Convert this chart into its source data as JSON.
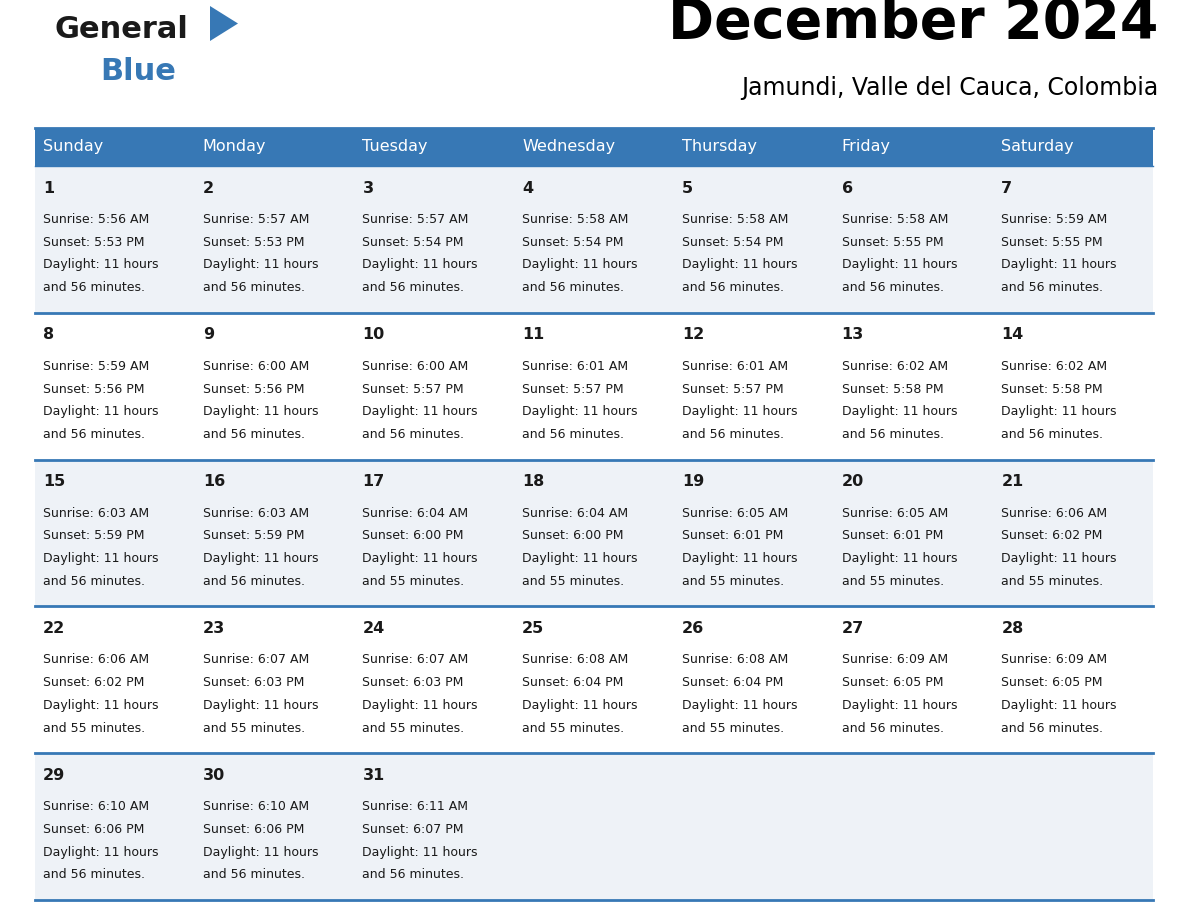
{
  "title": "December 2024",
  "subtitle": "Jamundi, Valle del Cauca, Colombia",
  "header_color": "#3778b5",
  "header_text_color": "#ffffff",
  "cell_bg_odd": "#eef2f7",
  "cell_bg_even": "#ffffff",
  "border_color": "#3778b5",
  "text_color": "#1a1a1a",
  "day_names": [
    "Sunday",
    "Monday",
    "Tuesday",
    "Wednesday",
    "Thursday",
    "Friday",
    "Saturday"
  ],
  "days": [
    {
      "day": 1,
      "col": 0,
      "row": 0,
      "sunrise": "5:56 AM",
      "sunset": "5:53 PM",
      "daylight": "11 hours and 56 minutes."
    },
    {
      "day": 2,
      "col": 1,
      "row": 0,
      "sunrise": "5:57 AM",
      "sunset": "5:53 PM",
      "daylight": "11 hours and 56 minutes."
    },
    {
      "day": 3,
      "col": 2,
      "row": 0,
      "sunrise": "5:57 AM",
      "sunset": "5:54 PM",
      "daylight": "11 hours and 56 minutes."
    },
    {
      "day": 4,
      "col": 3,
      "row": 0,
      "sunrise": "5:58 AM",
      "sunset": "5:54 PM",
      "daylight": "11 hours and 56 minutes."
    },
    {
      "day": 5,
      "col": 4,
      "row": 0,
      "sunrise": "5:58 AM",
      "sunset": "5:54 PM",
      "daylight": "11 hours and 56 minutes."
    },
    {
      "day": 6,
      "col": 5,
      "row": 0,
      "sunrise": "5:58 AM",
      "sunset": "5:55 PM",
      "daylight": "11 hours and 56 minutes."
    },
    {
      "day": 7,
      "col": 6,
      "row": 0,
      "sunrise": "5:59 AM",
      "sunset": "5:55 PM",
      "daylight": "11 hours and 56 minutes."
    },
    {
      "day": 8,
      "col": 0,
      "row": 1,
      "sunrise": "5:59 AM",
      "sunset": "5:56 PM",
      "daylight": "11 hours and 56 minutes."
    },
    {
      "day": 9,
      "col": 1,
      "row": 1,
      "sunrise": "6:00 AM",
      "sunset": "5:56 PM",
      "daylight": "11 hours and 56 minutes."
    },
    {
      "day": 10,
      "col": 2,
      "row": 1,
      "sunrise": "6:00 AM",
      "sunset": "5:57 PM",
      "daylight": "11 hours and 56 minutes."
    },
    {
      "day": 11,
      "col": 3,
      "row": 1,
      "sunrise": "6:01 AM",
      "sunset": "5:57 PM",
      "daylight": "11 hours and 56 minutes."
    },
    {
      "day": 12,
      "col": 4,
      "row": 1,
      "sunrise": "6:01 AM",
      "sunset": "5:57 PM",
      "daylight": "11 hours and 56 minutes."
    },
    {
      "day": 13,
      "col": 5,
      "row": 1,
      "sunrise": "6:02 AM",
      "sunset": "5:58 PM",
      "daylight": "11 hours and 56 minutes."
    },
    {
      "day": 14,
      "col": 6,
      "row": 1,
      "sunrise": "6:02 AM",
      "sunset": "5:58 PM",
      "daylight": "11 hours and 56 minutes."
    },
    {
      "day": 15,
      "col": 0,
      "row": 2,
      "sunrise": "6:03 AM",
      "sunset": "5:59 PM",
      "daylight": "11 hours and 56 minutes."
    },
    {
      "day": 16,
      "col": 1,
      "row": 2,
      "sunrise": "6:03 AM",
      "sunset": "5:59 PM",
      "daylight": "11 hours and 56 minutes."
    },
    {
      "day": 17,
      "col": 2,
      "row": 2,
      "sunrise": "6:04 AM",
      "sunset": "6:00 PM",
      "daylight": "11 hours and 55 minutes."
    },
    {
      "day": 18,
      "col": 3,
      "row": 2,
      "sunrise": "6:04 AM",
      "sunset": "6:00 PM",
      "daylight": "11 hours and 55 minutes."
    },
    {
      "day": 19,
      "col": 4,
      "row": 2,
      "sunrise": "6:05 AM",
      "sunset": "6:01 PM",
      "daylight": "11 hours and 55 minutes."
    },
    {
      "day": 20,
      "col": 5,
      "row": 2,
      "sunrise": "6:05 AM",
      "sunset": "6:01 PM",
      "daylight": "11 hours and 55 minutes."
    },
    {
      "day": 21,
      "col": 6,
      "row": 2,
      "sunrise": "6:06 AM",
      "sunset": "6:02 PM",
      "daylight": "11 hours and 55 minutes."
    },
    {
      "day": 22,
      "col": 0,
      "row": 3,
      "sunrise": "6:06 AM",
      "sunset": "6:02 PM",
      "daylight": "11 hours and 55 minutes."
    },
    {
      "day": 23,
      "col": 1,
      "row": 3,
      "sunrise": "6:07 AM",
      "sunset": "6:03 PM",
      "daylight": "11 hours and 55 minutes."
    },
    {
      "day": 24,
      "col": 2,
      "row": 3,
      "sunrise": "6:07 AM",
      "sunset": "6:03 PM",
      "daylight": "11 hours and 55 minutes."
    },
    {
      "day": 25,
      "col": 3,
      "row": 3,
      "sunrise": "6:08 AM",
      "sunset": "6:04 PM",
      "daylight": "11 hours and 55 minutes."
    },
    {
      "day": 26,
      "col": 4,
      "row": 3,
      "sunrise": "6:08 AM",
      "sunset": "6:04 PM",
      "daylight": "11 hours and 55 minutes."
    },
    {
      "day": 27,
      "col": 5,
      "row": 3,
      "sunrise": "6:09 AM",
      "sunset": "6:05 PM",
      "daylight": "11 hours and 56 minutes."
    },
    {
      "day": 28,
      "col": 6,
      "row": 3,
      "sunrise": "6:09 AM",
      "sunset": "6:05 PM",
      "daylight": "11 hours and 56 minutes."
    },
    {
      "day": 29,
      "col": 0,
      "row": 4,
      "sunrise": "6:10 AM",
      "sunset": "6:06 PM",
      "daylight": "11 hours and 56 minutes."
    },
    {
      "day": 30,
      "col": 1,
      "row": 4,
      "sunrise": "6:10 AM",
      "sunset": "6:06 PM",
      "daylight": "11 hours and 56 minutes."
    },
    {
      "day": 31,
      "col": 2,
      "row": 4,
      "sunrise": "6:11 AM",
      "sunset": "6:07 PM",
      "daylight": "11 hours and 56 minutes."
    }
  ],
  "num_rows": 5,
  "num_cols": 7,
  "logo_color_general": "#1a1a1a",
  "logo_color_blue": "#3778b5",
  "logo_triangle_color": "#3778b5"
}
